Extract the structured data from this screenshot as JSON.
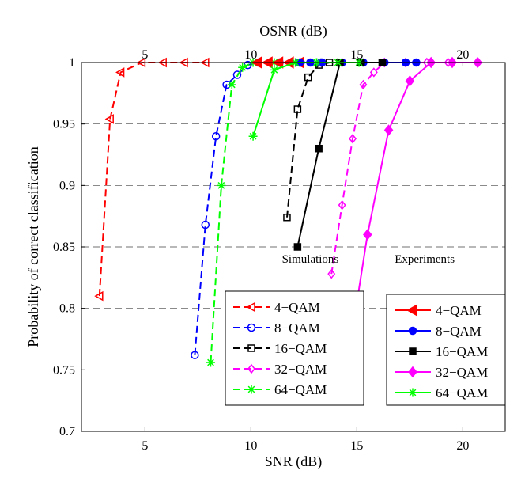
{
  "chart_data": {
    "type": "line",
    "xlabel": "SNR (dB)",
    "xlabel_top": "OSNR (dB)",
    "ylabel": "Probability of correct classification",
    "xlim": [
      2,
      22
    ],
    "ylim": [
      0.7,
      1.0
    ],
    "xticks": [
      5,
      10,
      15,
      20
    ],
    "xticks_top": [
      5,
      10,
      15,
      20
    ],
    "yticks": [
      0.7,
      0.75,
      0.8,
      0.85,
      0.9,
      0.95,
      1
    ],
    "grid": true,
    "annotations": [
      {
        "text": "Simulations",
        "x": 12.8,
        "y": 0.837
      },
      {
        "text": "Experiments",
        "x": 18.2,
        "y": 0.837
      }
    ],
    "legends": [
      {
        "position": "lower-center",
        "entries": [
          "4−QAM",
          "8−QAM",
          "16−QAM",
          "32−QAM",
          "64−QAM"
        ]
      },
      {
        "position": "lower-right",
        "entries": [
          "4−QAM",
          "8−QAM",
          "16−QAM",
          "32−QAM",
          "64−QAM"
        ]
      }
    ],
    "series": [
      {
        "name": "4−QAM",
        "group": "simulation",
        "color": "#ff0000",
        "marker": "triangle-left-open",
        "dash": true,
        "x": [
          2.85,
          3.35,
          3.85,
          4.85,
          5.85,
          6.85,
          7.85
        ],
        "y": [
          0.81,
          0.954,
          0.992,
          1.0,
          1.0,
          1.0,
          1.0
        ]
      },
      {
        "name": "8−QAM",
        "group": "simulation",
        "color": "#0000ff",
        "marker": "circle-open",
        "dash": true,
        "x": [
          7.35,
          7.85,
          8.35,
          8.85,
          9.35,
          9.85,
          10.35,
          11.35,
          12.35,
          13.35
        ],
        "y": [
          0.762,
          0.868,
          0.94,
          0.982,
          0.99,
          0.998,
          1.0,
          1.0,
          1.0,
          1.0
        ]
      },
      {
        "name": "16−QAM",
        "group": "simulation",
        "color": "#000000",
        "marker": "square-open",
        "dash": true,
        "x": [
          11.7,
          12.2,
          12.7,
          13.2,
          13.7,
          14.2,
          15.2,
          16.2
        ],
        "y": [
          0.874,
          0.962,
          0.988,
          0.998,
          1.0,
          1.0,
          1.0,
          1.0
        ]
      },
      {
        "name": "32−QAM",
        "group": "simulation",
        "color": "#ff00ff",
        "marker": "diamond-open",
        "dash": true,
        "x": [
          13.8,
          14.3,
          14.8,
          15.3,
          15.8,
          16.3,
          17.3,
          18.3,
          19.3
        ],
        "y": [
          0.828,
          0.884,
          0.938,
          0.982,
          0.992,
          1.0,
          1.0,
          1.0,
          1.0
        ]
      },
      {
        "name": "64−QAM",
        "group": "simulation",
        "color": "#00ff00",
        "marker": "star",
        "dash": true,
        "x": [
          8.1,
          8.6,
          9.1,
          9.6,
          10.1,
          11.1,
          12.1,
          13.1
        ],
        "y": [
          0.756,
          0.9,
          0.982,
          0.996,
          1.0,
          1.0,
          1.0,
          1.0
        ]
      },
      {
        "name": "4−QAM",
        "group": "experiment",
        "color": "#ff0000",
        "marker": "triangle-left-filled",
        "dash": false,
        "x": [
          10.3,
          10.8,
          11.3,
          11.8,
          12.3
        ],
        "y": [
          1.0,
          1.0,
          1.0,
          1.0,
          1.0
        ]
      },
      {
        "name": "8−QAM",
        "group": "experiment",
        "color": "#0000ff",
        "marker": "circle-filled",
        "dash": false,
        "x": [
          12.3,
          12.8,
          13.3,
          14.3,
          15.3,
          16.3,
          17.3,
          17.8
        ],
        "y": [
          1.0,
          1.0,
          1.0,
          1.0,
          1.0,
          1.0,
          1.0,
          1.0
        ]
      },
      {
        "name": "16−QAM",
        "group": "experiment",
        "color": "#000000",
        "marker": "square-filled",
        "dash": false,
        "x": [
          12.2,
          13.2,
          14.2,
          15.2,
          16.2
        ],
        "y": [
          0.85,
          0.93,
          1.0,
          1.0,
          1.0
        ]
      },
      {
        "name": "32−QAM",
        "group": "experiment",
        "color": "#ff00ff",
        "marker": "diamond-filled",
        "dash": false,
        "x": [
          14.5,
          15.5,
          16.5,
          17.5,
          18.5,
          19.5,
          20.7
        ],
        "y": [
          0.75,
          0.86,
          0.945,
          0.985,
          1.0,
          1.0,
          1.0
        ]
      },
      {
        "name": "64−QAM",
        "group": "experiment",
        "color": "#00ff00",
        "marker": "star",
        "dash": false,
        "x": [
          10.1,
          11.1,
          12.1,
          13.1,
          14.1,
          15.1
        ],
        "y": [
          0.94,
          0.994,
          1.0,
          1.0,
          1.0,
          1.0
        ]
      }
    ]
  }
}
